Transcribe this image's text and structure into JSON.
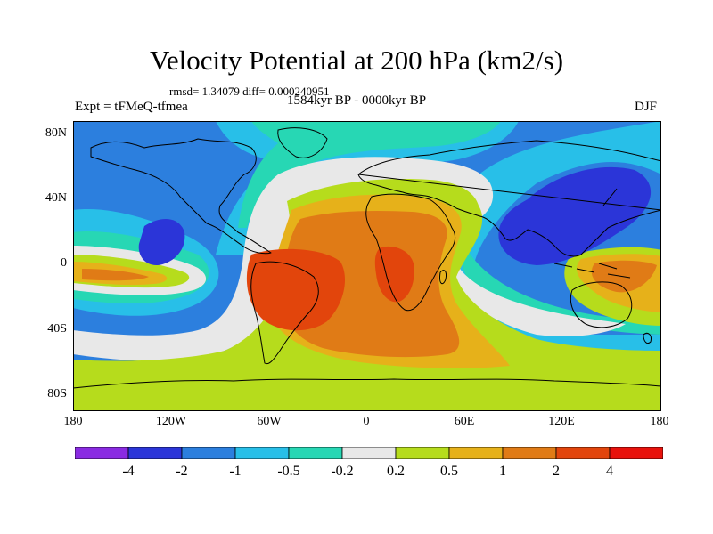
{
  "figure": {
    "title": "Velocity Potential at 200 hPa (km2/s)",
    "rmsd_text": "rmsd= 1.34079 diff= 0.000240951",
    "period_text": "1584kyr BP - 0000kyr BP",
    "experiment_text": "Expt = tFMeQ-tfmea",
    "season_text": "DJF"
  },
  "axes": {
    "lat_labels": [
      "80N",
      "40N",
      "0",
      "40S",
      "80S"
    ],
    "lon_labels": [
      "180",
      "120W",
      "60W",
      "0",
      "60E",
      "120E",
      "180"
    ]
  },
  "colorbar": {
    "labels": [
      "-4",
      "-2",
      "-1",
      "-0.5",
      "-0.2",
      "0.2",
      "0.5",
      "1",
      "2",
      "4"
    ],
    "colors": [
      "#8a2be2",
      "#2b35d8",
      "#2c7fde",
      "#28bfe8",
      "#27d7b4",
      "#e8e8e8",
      "#b6dc1c",
      "#e6b11a",
      "#e07b16",
      "#e2450c",
      "#e8120c"
    ]
  },
  "chart_data": {
    "type": "filled-contour-map",
    "title": "Velocity Potential at 200 hPa (km2/s)",
    "variable": "velocity potential at 200 hPa",
    "units": "km2/s",
    "season": "DJF",
    "experiment": "tFMeQ-tfmea",
    "comparison": "1584kyr BP - 0000kyr BP",
    "rmsd": 1.34079,
    "diff": 0.000240951,
    "lon_range": [
      -180,
      180
    ],
    "lat_range": [
      -90,
      90
    ],
    "contour_levels": [
      -4,
      -2,
      -1,
      -0.5,
      -0.2,
      0.2,
      0.5,
      1,
      2,
      4
    ]
  }
}
